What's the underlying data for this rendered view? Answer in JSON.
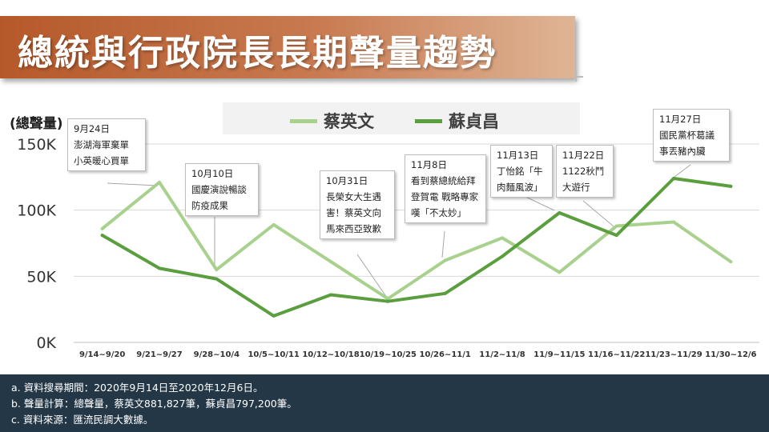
{
  "title": "總統與行政院長長期聲量趨勢",
  "unit_label": "(總聲量)",
  "colors": {
    "tsai": "#a9d18e",
    "su": "#5a9e3e",
    "banner": "#b5592a",
    "footer": "#243746"
  },
  "chart_data": {
    "type": "line",
    "categories": [
      "9/14~9/20",
      "9/21~9/27",
      "9/28~10/4",
      "10/5~10/11",
      "10/12~10/18",
      "10/19~10/25",
      "10/26~11/1",
      "11/2~11/8",
      "11/9~11/15",
      "11/16~11/22",
      "11/23~11/29",
      "11/30~12/6"
    ],
    "series": [
      {
        "name": "蔡英文",
        "values": [
          86000,
          121000,
          55000,
          89000,
          61000,
          33000,
          62000,
          79000,
          53000,
          88000,
          91000,
          61000
        ]
      },
      {
        "name": "蘇貞昌",
        "values": [
          81000,
          56000,
          48000,
          20000,
          36000,
          31000,
          37000,
          65000,
          98000,
          81000,
          124000,
          118000
        ]
      }
    ],
    "yticks": [
      "0K",
      "50K",
      "100K",
      "150K"
    ],
    "ylim": [
      0,
      165000
    ],
    "grid": true,
    "legend": "top-center"
  },
  "callouts": [
    {
      "lines": [
        "9月24日",
        "澎湖海軍棄單",
        "小英暖心買單"
      ]
    },
    {
      "lines": [
        "10月10日",
        "國慶演說暢談",
        "防疫成果"
      ]
    },
    {
      "lines": [
        "10月31日",
        "長榮女大生遇",
        "害！蔡英文向",
        "馬來西亞致歉"
      ]
    },
    {
      "lines": [
        "11月8日",
        "看到蔡總統給拜",
        "登賀電 戰略專家",
        "嘆「不太妙」"
      ]
    },
    {
      "lines": [
        "11月13日",
        "丁怡銘「牛",
        "肉麵風波」"
      ]
    },
    {
      "lines": [
        "11月22日",
        "1122秋鬥",
        "大遊行"
      ]
    },
    {
      "lines": [
        "11月27日",
        "國民黨杯葛議",
        "事丟豬內臟"
      ]
    }
  ],
  "footer": [
    "a. 資料搜尋期間：2020年9月14日至2020年12月6日。",
    "b. 聲量計算：總聲量，蔡英文881,827筆，蘇貞昌797,200筆。",
    "c. 資料來源：匯流民調大數據。"
  ]
}
